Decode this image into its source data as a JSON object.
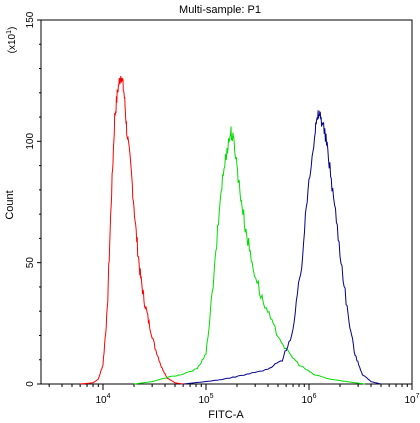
{
  "chart_data": {
    "type": "line",
    "title": "Multi-sample: P1",
    "xlabel": "FITC-A",
    "ylabel": "Count",
    "y_multiplier_label": "(x10",
    "y_multiplier_exp": "1",
    "x_scale": "log",
    "xlim": [
      2500,
      10000000
    ],
    "ylim": [
      0,
      150
    ],
    "x_ticks": [
      {
        "value": 10000,
        "base": "10",
        "exp": "4"
      },
      {
        "value": 100000,
        "base": "10",
        "exp": "5"
      },
      {
        "value": 1000000,
        "base": "10",
        "exp": "6"
      },
      {
        "value": 10000000,
        "base": "10",
        "exp": "7"
      }
    ],
    "y_ticks": [
      0,
      50,
      100,
      150
    ],
    "grid": false,
    "legend": "none",
    "series": [
      {
        "color": "#ff0000",
        "points": [
          [
            6000,
            0
          ],
          [
            8000,
            0.5
          ],
          [
            9000,
            2
          ],
          [
            10000,
            8
          ],
          [
            11000,
            30
          ],
          [
            12000,
            75
          ],
          [
            13000,
            110
          ],
          [
            14000,
            122
          ],
          [
            15000,
            128
          ],
          [
            16000,
            120
          ],
          [
            17000,
            105
          ],
          [
            19000,
            85
          ],
          [
            21000,
            62
          ],
          [
            23000,
            45
          ],
          [
            25000,
            35
          ],
          [
            28000,
            25
          ],
          [
            32000,
            15
          ],
          [
            37000,
            7
          ],
          [
            42000,
            2.5
          ],
          [
            50000,
            0.5
          ],
          [
            60000,
            0
          ]
        ]
      },
      {
        "color": "#00dd00",
        "points": [
          [
            20000,
            0
          ],
          [
            30000,
            1
          ],
          [
            45000,
            3
          ],
          [
            60000,
            4
          ],
          [
            80000,
            6
          ],
          [
            100000,
            12
          ],
          [
            120000,
            45
          ],
          [
            140000,
            80
          ],
          [
            160000,
            97
          ],
          [
            175000,
            104
          ],
          [
            190000,
            98
          ],
          [
            210000,
            82
          ],
          [
            240000,
            65
          ],
          [
            280000,
            50
          ],
          [
            350000,
            35
          ],
          [
            450000,
            24
          ],
          [
            600000,
            14
          ],
          [
            800000,
            8
          ],
          [
            1100000,
            4
          ],
          [
            1600000,
            2
          ],
          [
            2500000,
            0.8
          ],
          [
            3500000,
            0
          ]
        ]
      },
      {
        "color": "#00008b",
        "points": [
          [
            60000,
            0
          ],
          [
            100000,
            1
          ],
          [
            150000,
            2
          ],
          [
            250000,
            4
          ],
          [
            400000,
            6
          ],
          [
            550000,
            10
          ],
          [
            700000,
            22
          ],
          [
            850000,
            50
          ],
          [
            1000000,
            85
          ],
          [
            1150000,
            105
          ],
          [
            1250000,
            112
          ],
          [
            1350000,
            108
          ],
          [
            1500000,
            98
          ],
          [
            1700000,
            80
          ],
          [
            2000000,
            55
          ],
          [
            2400000,
            28
          ],
          [
            2800000,
            12
          ],
          [
            3300000,
            4
          ],
          [
            4000000,
            1
          ],
          [
            5000000,
            0
          ]
        ]
      }
    ]
  }
}
